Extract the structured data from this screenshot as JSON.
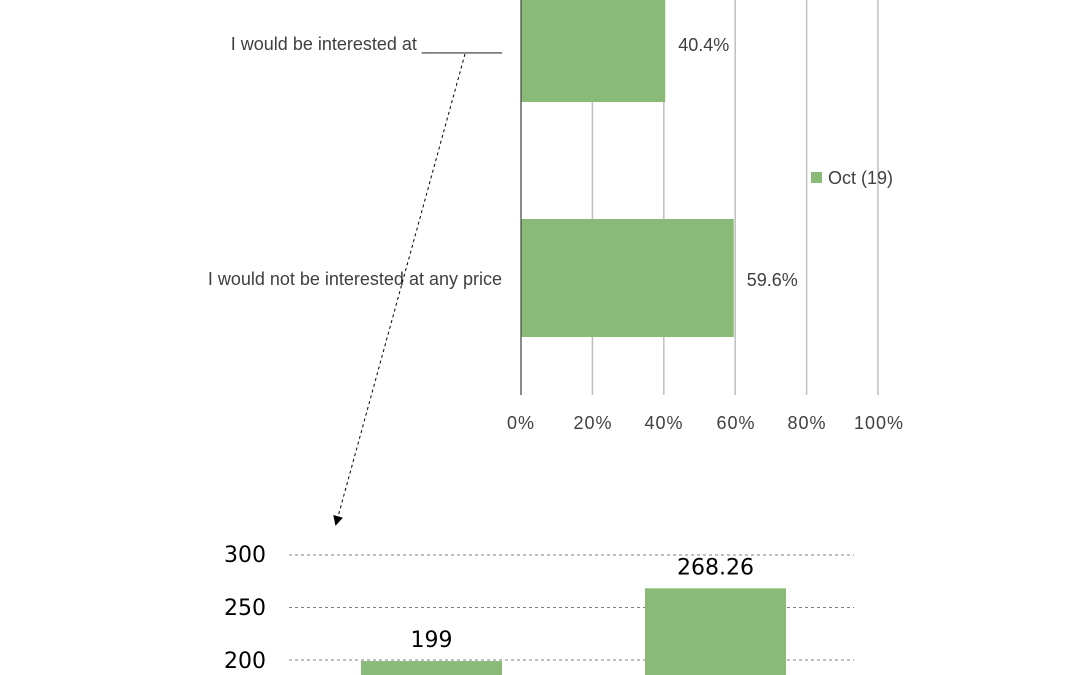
{
  "colors": {
    "bar": "#8aba78",
    "grid": "#bfbfbf",
    "axis": "#404040",
    "text": "#404040"
  },
  "chart_data": [
    {
      "type": "bar",
      "orientation": "horizontal",
      "categories": [
        "I would be interested at ________",
        "I would not be interested at any price"
      ],
      "series": [
        {
          "name": "Oct (19)",
          "values": [
            40.4,
            59.6
          ]
        }
      ],
      "value_labels": [
        "40.4%",
        "59.6%"
      ],
      "xlim": [
        0,
        100
      ],
      "x_ticks": [
        "0%",
        "20%",
        "40%",
        "60%",
        "80%",
        "100%"
      ],
      "grid": true,
      "legend": "right"
    },
    {
      "type": "bar",
      "values": [
        199,
        268.26
      ],
      "value_labels": [
        "199",
        "268.26"
      ],
      "ylim": [
        0,
        300
      ],
      "y_ticks": [
        "300",
        "250",
        "200"
      ],
      "grid": true
    }
  ]
}
